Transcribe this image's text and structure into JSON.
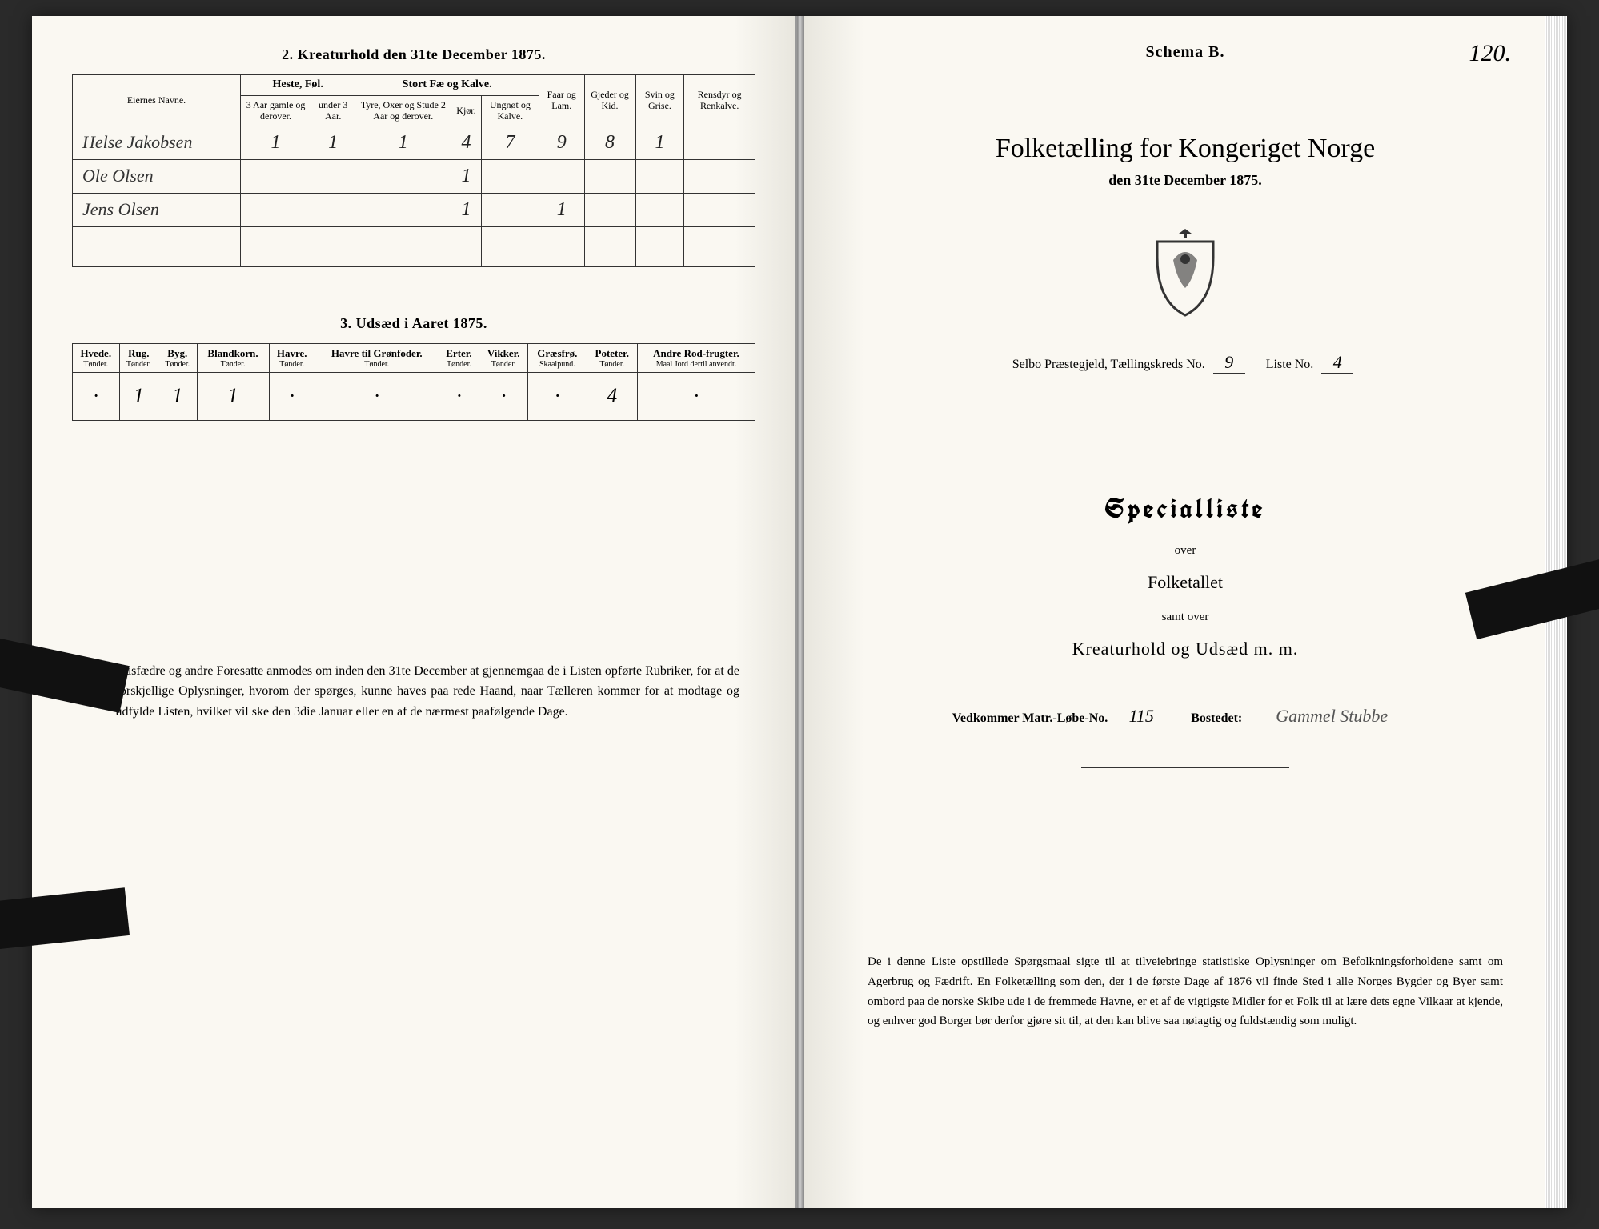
{
  "colors": {
    "paper": "#faf8f2",
    "ink": "#222222",
    "border": "#333333",
    "background": "#2a2a2a"
  },
  "left": {
    "section2_title": "2.  Kreaturhold den 31te December 1875.",
    "table2": {
      "col_owner": "Eiernes Navne.",
      "grp_horses": "Heste, Føl.",
      "grp_cattle": "Stort Fæ og Kalve.",
      "horses_a": "3 Aar gamle og derover.",
      "horses_b": "under 3 Aar.",
      "cattle_a": "Tyre, Oxer og Stude 2 Aar og derover.",
      "cattle_b": "Kjør.",
      "cattle_c": "Ungnøt og Kalve.",
      "sheep": "Faar og Lam.",
      "goats": "Gjeder og Kid.",
      "pigs": "Svin og Grise.",
      "reindeer": "Rensdyr og Renkalve.",
      "rows": [
        {
          "name": "Helse Jakobsen",
          "cells": [
            "1",
            "1",
            "1",
            "4",
            "7",
            "9",
            "8",
            "1",
            ""
          ]
        },
        {
          "name": "Ole Olsen",
          "cells": [
            "",
            "",
            "",
            "1",
            "",
            "",
            "",
            "",
            ""
          ]
        },
        {
          "name": "Jens Olsen",
          "cells": [
            "",
            "",
            "",
            "1",
            "",
            "1",
            "",
            "",
            ""
          ]
        }
      ]
    },
    "section3_title": "3.  Udsæd i Aaret 1875.",
    "table3": {
      "headers": [
        {
          "h": "Hvede.",
          "s": "Tønder."
        },
        {
          "h": "Rug.",
          "s": "Tønder."
        },
        {
          "h": "Byg.",
          "s": "Tønder."
        },
        {
          "h": "Blandkorn.",
          "s": "Tønder."
        },
        {
          "h": "Havre.",
          "s": "Tønder."
        },
        {
          "h": "Havre til Grønfoder.",
          "s": "Tønder."
        },
        {
          "h": "Erter.",
          "s": "Tønder."
        },
        {
          "h": "Vikker.",
          "s": "Tønder."
        },
        {
          "h": "Græsfrø.",
          "s": "Skaalpund."
        },
        {
          "h": "Poteter.",
          "s": "Tønder."
        },
        {
          "h": "Andre Rod-frugter.",
          "s": "Maal Jord dertil anvendt."
        }
      ],
      "row": [
        "·",
        "1",
        "1",
        "1",
        "·",
        "·",
        "·",
        "·",
        "·",
        "4",
        "·"
      ]
    },
    "footnote": "Husfædre og andre Foresatte anmodes om inden den 31te December at gjennemgaa de i Listen opførte Rubriker, for at de forskjellige Oplysninger, hvorom der spørges, kunne haves paa rede Haand, naar Tælleren kommer for at modtage og udfylde Listen, hvilket vil ske den 3die Januar eller en af de nærmest paafølgende Dage."
  },
  "right": {
    "page_number": "120.",
    "schema": "Schema B.",
    "title": "Folketælling for Kongeriget Norge",
    "date": "den 31te December 1875.",
    "parish_label": "Selbo Præstegjeld,  Tællingskreds No.",
    "parish_no": "9",
    "list_label": "Liste No.",
    "list_no": "4",
    "special": "Specialliste",
    "over": "over",
    "folketallet": "Folketallet",
    "samt": "samt over",
    "kreatur": "Kreaturhold og Udsæd m. m.",
    "matr_label": "Vedkommer Matr.-Løbe-No.",
    "matr_no": "115",
    "bostedet_label": "Bostedet:",
    "bostedet": "Gammel Stubbe",
    "footer": "De i denne Liste opstillede Spørgsmaal sigte til at tilveiebringe statistiske Oplysninger om Befolkningsforholdene samt om Agerbrug og Fædrift.  En Folketælling som den, der i de første Dage af 1876 vil finde Sted i alle Norges Bygder og Byer samt ombord paa de norske Skibe ude i de fremmede Havne, er et af de vigtigste Midler for et Folk til at lære dets egne Vilkaar at kjende, og enhver god Borger bør derfor gjøre sit til, at den kan blive saa nøiagtig og fuldstændig som muligt."
  }
}
